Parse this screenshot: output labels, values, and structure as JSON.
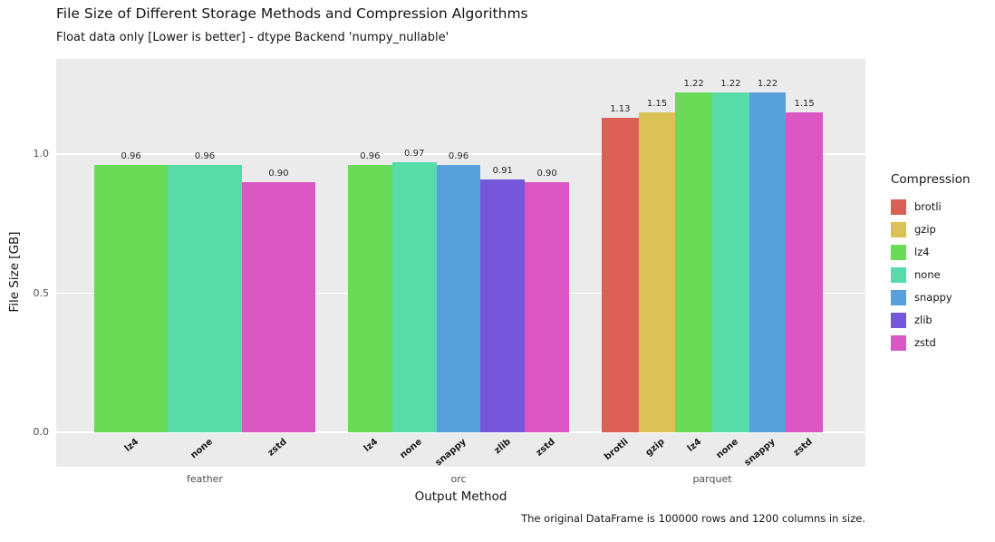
{
  "chart_data": {
    "type": "bar",
    "title": "File Size of Different Storage Methods and Compression Algorithms",
    "subtitle": "Float data only [Lower is better] - dtype Backend 'numpy_nullable'",
    "xlabel": "Output Method",
    "ylabel": "File Size [GB]",
    "ylim": [
      0,
      1.3
    ],
    "yticks": [
      0.0,
      0.5,
      1.0
    ],
    "grid": true,
    "legend_title": "Compression",
    "legend_position": "right",
    "legend_entries": [
      "brotli",
      "gzip",
      "lz4",
      "none",
      "snappy",
      "zlib",
      "zstd"
    ],
    "palette": {
      "brotli": "#db5f57",
      "gzip": "#dbc257",
      "lz4": "#69db57",
      "none": "#57dba8",
      "snappy": "#57a0db",
      "zlib": "#7557db",
      "zstd": "#db57c3"
    },
    "categories": [
      "feather",
      "orc",
      "parquet"
    ],
    "groups": [
      {
        "label": "feather",
        "bars": [
          {
            "compression": "lz4",
            "value": 0.96
          },
          {
            "compression": "none",
            "value": 0.96
          },
          {
            "compression": "zstd",
            "value": 0.9
          }
        ]
      },
      {
        "label": "orc",
        "bars": [
          {
            "compression": "lz4",
            "value": 0.96
          },
          {
            "compression": "none",
            "value": 0.97
          },
          {
            "compression": "snappy",
            "value": 0.96
          },
          {
            "compression": "zlib",
            "value": 0.91
          },
          {
            "compression": "zstd",
            "value": 0.9
          }
        ]
      },
      {
        "label": "parquet",
        "bars": [
          {
            "compression": "brotli",
            "value": 1.13
          },
          {
            "compression": "gzip",
            "value": 1.15
          },
          {
            "compression": "lz4",
            "value": 1.22
          },
          {
            "compression": "none",
            "value": 1.22
          },
          {
            "compression": "snappy",
            "value": 1.22
          },
          {
            "compression": "zstd",
            "value": 1.15
          }
        ]
      }
    ],
    "footer_note": "The original DataFrame is 100000 rows and 1200 columns in size.",
    "panel_bg": "#ebebeb",
    "grid_color": "#ffffff"
  }
}
